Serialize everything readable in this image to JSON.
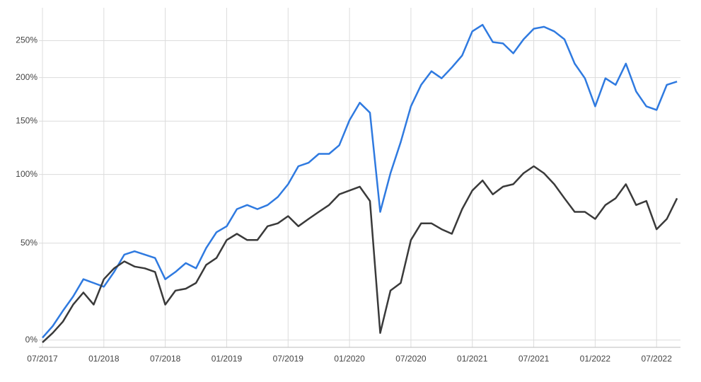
{
  "chart_data": {
    "type": "line",
    "log_scale": true,
    "grid": true,
    "x": [
      "07/2017",
      "08/2017",
      "09/2017",
      "10/2017",
      "11/2017",
      "12/2017",
      "01/2018",
      "02/2018",
      "03/2018",
      "04/2018",
      "05/2018",
      "06/2018",
      "07/2018",
      "08/2018",
      "09/2018",
      "10/2018",
      "11/2018",
      "12/2018",
      "01/2019",
      "02/2019",
      "03/2019",
      "04/2019",
      "05/2019",
      "06/2019",
      "07/2019",
      "08/2019",
      "09/2019",
      "10/2019",
      "11/2019",
      "12/2019",
      "01/2020",
      "02/2020",
      "03/2020",
      "04/2020",
      "05/2020",
      "06/2020",
      "07/2020",
      "08/2020",
      "09/2020",
      "10/2020",
      "11/2020",
      "12/2020",
      "01/2021",
      "02/2021",
      "03/2021",
      "04/2021",
      "05/2021",
      "06/2021",
      "07/2021",
      "08/2021",
      "09/2021",
      "10/2021",
      "11/2021",
      "12/2021",
      "01/2022",
      "02/2022",
      "03/2022",
      "04/2022",
      "05/2022",
      "06/2022",
      "07/2022",
      "08/2022",
      "09/2022"
    ],
    "xticks": [
      "07/2017",
      "01/2018",
      "07/2018",
      "01/2019",
      "07/2019",
      "01/2020",
      "07/2020",
      "01/2021",
      "07/2021",
      "01/2022",
      "07/2022"
    ],
    "ylim": [
      -3,
      290
    ],
    "yticks": [
      {
        "value": 0,
        "label": "0%"
      },
      {
        "value": 50,
        "label": "50%"
      },
      {
        "value": 100,
        "label": "100%"
      },
      {
        "value": 150,
        "label": "150%"
      },
      {
        "value": 200,
        "label": "200%"
      },
      {
        "value": 250,
        "label": "250%"
      }
    ],
    "series": [
      {
        "color": "#2f7ae0",
        "values": [
          1,
          6,
          13,
          20,
          29,
          27,
          25,
          33,
          43,
          45,
          43,
          41,
          29,
          33,
          38,
          35,
          47,
          57,
          61,
          73,
          76,
          73,
          76,
          82,
          92,
          107,
          110,
          118,
          118,
          126,
          151,
          170,
          159,
          71,
          101,
          129,
          166,
          191,
          208,
          199,
          213,
          229,
          264,
          274,
          248,
          246,
          232,
          252,
          268,
          271,
          264,
          252,
          218,
          199,
          166,
          199,
          191,
          218,
          183,
          166,
          162,
          191,
          195
        ]
      },
      {
        "color": "#3a3a3a",
        "values": [
          -1,
          3,
          8,
          16,
          22,
          16,
          29,
          35,
          39,
          36,
          35,
          33,
          16,
          23,
          24,
          27,
          37,
          41,
          52,
          56,
          52,
          52,
          61,
          63,
          68,
          61,
          66,
          71,
          76,
          84,
          87,
          90,
          79,
          3,
          23,
          27,
          52,
          63,
          63,
          59,
          56,
          73,
          87,
          95,
          84,
          90,
          92,
          101,
          107,
          101,
          92,
          81,
          71,
          71,
          66,
          76,
          81,
          92,
          76,
          79,
          59,
          66,
          81
        ]
      }
    ]
  }
}
